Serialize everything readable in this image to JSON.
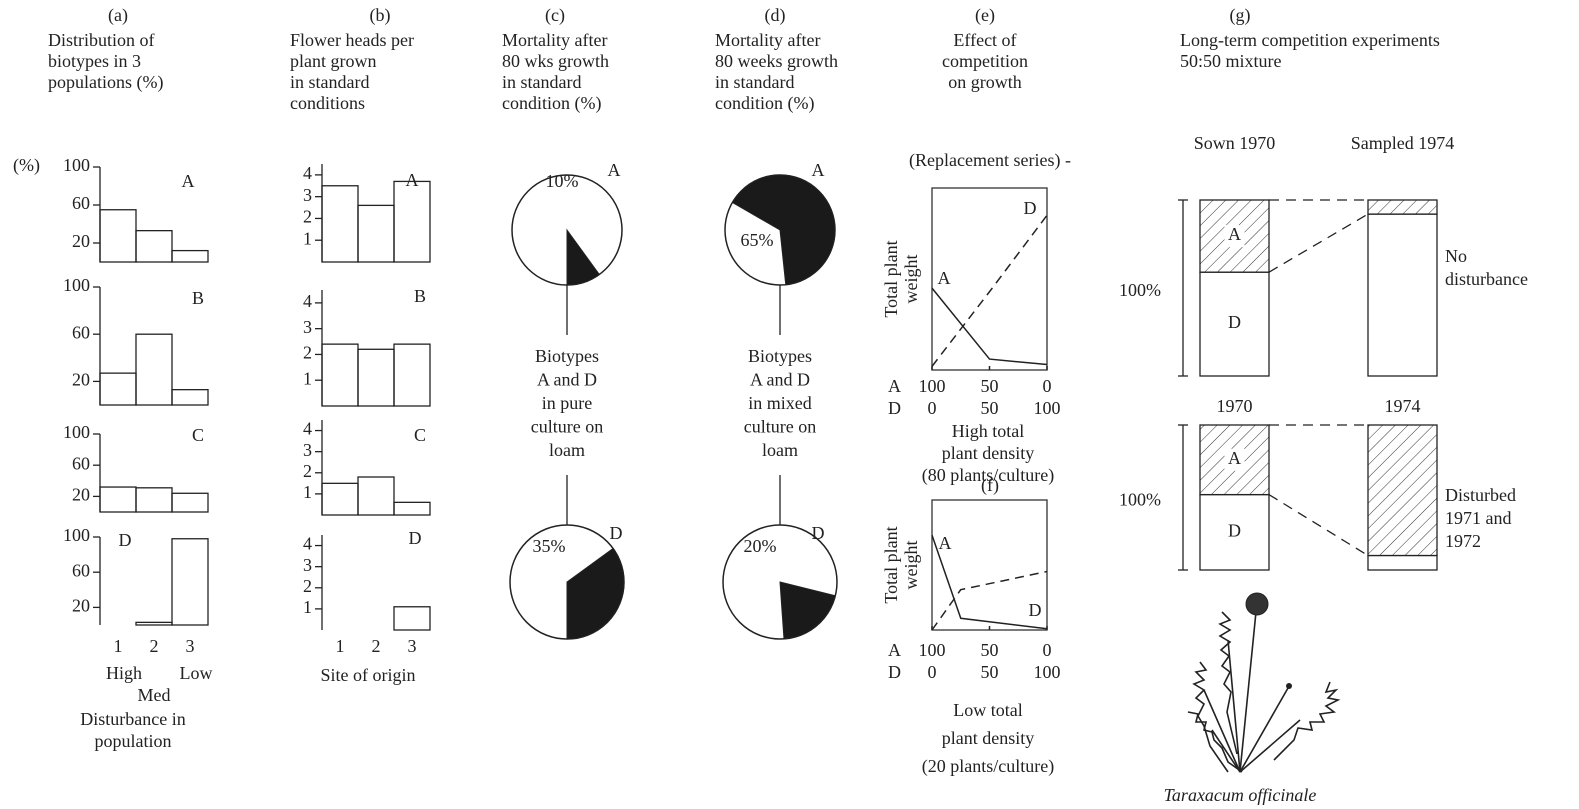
{
  "chart_data": [
    {
      "type": "bar",
      "label": "(a)",
      "title": [
        "Distribution of",
        "biotypes in 3",
        "populations (%)"
      ],
      "ylabel": "(%)",
      "ylim": [
        0,
        100
      ],
      "yticks": [
        20,
        60,
        100
      ],
      "categories": [
        "1",
        "2",
        "3"
      ],
      "category_labels": [
        "High",
        "Med",
        "Low"
      ],
      "xlabel": [
        "Disturbance in",
        "population"
      ],
      "series": [
        {
          "name": "A",
          "values": [
            55,
            33,
            12
          ]
        },
        {
          "name": "B",
          "values": [
            27,
            60,
            13
          ]
        },
        {
          "name": "C",
          "values": [
            32,
            31,
            24
          ]
        },
        {
          "name": "D",
          "values": [
            0,
            3,
            98
          ]
        }
      ]
    },
    {
      "type": "bar",
      "label": "(b)",
      "title": [
        "Flower heads per",
        "plant grown",
        "in standard",
        "conditions"
      ],
      "ylim": [
        0,
        4.5
      ],
      "yticks": [
        1,
        2,
        3,
        4
      ],
      "categories": [
        "1",
        "2",
        "3"
      ],
      "xlabel": [
        "Site of origin"
      ],
      "series": [
        {
          "name": "A",
          "values": [
            3.5,
            2.6,
            3.7
          ]
        },
        {
          "name": "B",
          "values": [
            2.4,
            2.2,
            2.4
          ]
        },
        {
          "name": "C",
          "values": [
            1.5,
            1.8,
            0.6
          ]
        },
        {
          "name": "D",
          "values": [
            0,
            0,
            1.1
          ]
        }
      ]
    },
    {
      "type": "pie",
      "label": "(c)",
      "title": [
        "Mortality after",
        "80 wks growth",
        "in standard",
        "condition (%)"
      ],
      "caption": [
        "Biotypes",
        "A and D",
        "in pure",
        "culture on",
        "loam"
      ],
      "series": [
        {
          "name": "A",
          "values": [
            10
          ],
          "value_labels": [
            "10%"
          ]
        },
        {
          "name": "D",
          "values": [
            35
          ],
          "value_labels": [
            "35%"
          ]
        }
      ]
    },
    {
      "type": "pie",
      "label": "(d)",
      "title": [
        "Mortality after",
        "80 weeks growth",
        "in standard",
        "condition (%)"
      ],
      "caption": [
        "Biotypes",
        "A and D",
        "in mixed",
        "culture on",
        "loam"
      ],
      "series": [
        {
          "name": "A",
          "values": [
            65
          ],
          "value_labels": [
            "65%"
          ]
        },
        {
          "name": "D",
          "values": [
            20
          ],
          "value_labels": [
            "20%"
          ]
        }
      ]
    },
    {
      "type": "line",
      "label": "(e)",
      "title": [
        "Effect of",
        "competition",
        "on growth"
      ],
      "subtitle": "(Replacement series) -",
      "ylabel": [
        "Total plant",
        "weight"
      ],
      "x": [
        0,
        50,
        100
      ],
      "xlim": [
        0,
        100
      ],
      "ylim": [
        0,
        100
      ],
      "xtick_rows": [
        {
          "name": "A",
          "ticks": [
            {
              "value": 0,
              "label": "100"
            },
            50,
            {
              "value": 100,
              "label": "0"
            }
          ]
        },
        {
          "name": "D",
          "ticks": [
            0,
            50,
            100
          ]
        }
      ],
      "series": [
        {
          "name": "A",
          "dashed": false,
          "values": [
            45,
            6,
            3
          ]
        },
        {
          "name": "D",
          "dashed": true,
          "values": [
            2,
            43,
            85
          ]
        }
      ],
      "caption": [
        "High total",
        "plant density",
        "(80 plants/culture)"
      ]
    },
    {
      "type": "line",
      "label": "(f)",
      "ylabel": [
        "Total plant",
        "weight"
      ],
      "x": [
        0,
        25,
        100
      ],
      "xlim": [
        0,
        100
      ],
      "ylim": [
        0,
        100
      ],
      "xtick_rows": [
        {
          "name": "A",
          "ticks": [
            {
              "value": 0,
              "label": "100"
            },
            50,
            {
              "value": 100,
              "label": "0"
            }
          ]
        },
        {
          "name": "D",
          "ticks": [
            0,
            50,
            100
          ]
        }
      ],
      "series": [
        {
          "name": "A",
          "dashed": false,
          "values": [
            73,
            9,
            1
          ]
        },
        {
          "name": "D",
          "dashed": true,
          "values": [
            0,
            31,
            45
          ]
        }
      ],
      "caption": [
        "Low total",
        "plant density",
        "(20 plants/culture)"
      ]
    },
    {
      "type": "stacked",
      "label": "(g)",
      "title": [
        "Long-term competition experiments",
        "50:50 mixture"
      ],
      "ylabel": "100%",
      "ylim": [
        0,
        100
      ],
      "groups": [
        {
          "categories": [
            "Sown 1970",
            "Sampled 1974"
          ],
          "note": [
            "No",
            "disturbance"
          ],
          "series": [
            {
              "name": "A",
              "hatch": true,
              "values": [
                41,
                8
              ]
            },
            {
              "name": "D",
              "hatch": false,
              "values": [
                59,
                92
              ]
            }
          ]
        },
        {
          "categories": [
            "1970",
            "1974"
          ],
          "note": [
            "Disturbed",
            "1971 and",
            "1972"
          ],
          "series": [
            {
              "name": "A",
              "hatch": true,
              "values": [
                48,
                90
              ]
            },
            {
              "name": "D",
              "hatch": false,
              "values": [
                52,
                10
              ]
            }
          ]
        }
      ],
      "caption": "Taraxacum officinale"
    }
  ]
}
